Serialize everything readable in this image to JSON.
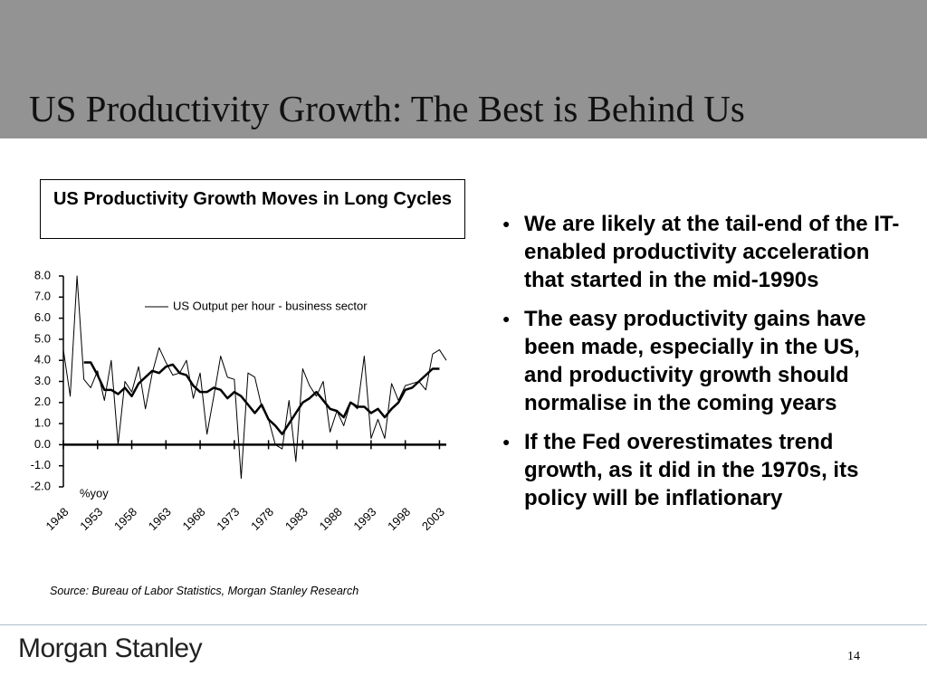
{
  "title": "US Productivity Growth: The Best is Behind Us",
  "bullets": [
    "We are likely at the tail-end of the IT-enabled productivity acceleration that started in the mid-1990s",
    "The easy productivity gains have been made, especially in the US, and productivity growth should normalise in the coming years",
    "If the Fed overestimates trend growth, as it did in the 1970s, its policy will be inflationary"
  ],
  "logo": "Morgan Stanley",
  "page_number": "14",
  "chart_data": {
    "type": "line",
    "title": "US Productivity Growth Moves in Long Cycles",
    "y_unit_label": "%yoy",
    "source": "Source: Bureau of Labor Statistics, Morgan Stanley Research",
    "x": [
      1948,
      1949,
      1950,
      1951,
      1952,
      1953,
      1954,
      1955,
      1956,
      1957,
      1958,
      1959,
      1960,
      1961,
      1962,
      1963,
      1964,
      1965,
      1966,
      1967,
      1968,
      1969,
      1970,
      1971,
      1972,
      1973,
      1974,
      1975,
      1976,
      1977,
      1978,
      1979,
      1980,
      1981,
      1982,
      1983,
      1984,
      1985,
      1986,
      1987,
      1988,
      1989,
      1990,
      1991,
      1992,
      1993,
      1994,
      1995,
      1996,
      1997,
      1998,
      1999,
      2000,
      2001,
      2002,
      2003,
      2004
    ],
    "series": [
      {
        "name": "US Output per hour - business sector",
        "color": "#000000",
        "line_width": 1,
        "values": [
          4.5,
          2.3,
          8.0,
          3.1,
          2.7,
          3.5,
          2.1,
          4.0,
          0.0,
          3.0,
          2.5,
          3.7,
          1.7,
          3.4,
          4.6,
          3.9,
          3.3,
          3.4,
          4.0,
          2.2,
          3.4,
          0.5,
          2.3,
          4.2,
          3.2,
          3.1,
          -1.6,
          3.4,
          3.2,
          1.8,
          1.2,
          0.0,
          -0.2,
          2.1,
          -0.8,
          3.6,
          2.8,
          2.3,
          3.0,
          0.6,
          1.6,
          0.9,
          2.0,
          1.7,
          4.2,
          0.3,
          1.2,
          0.3,
          2.9,
          2.1,
          2.8,
          2.9,
          3.0,
          2.6,
          4.3,
          4.5,
          4.0
        ]
      },
      {
        "color": "#000000",
        "line_width": 2.5,
        "values": [
          null,
          null,
          null,
          3.9,
          3.9,
          3.3,
          2.6,
          2.6,
          2.4,
          2.7,
          2.3,
          2.9,
          3.2,
          3.5,
          3.4,
          3.7,
          3.8,
          3.4,
          3.3,
          2.8,
          2.5,
          2.5,
          2.7,
          2.6,
          2.2,
          2.5,
          2.3,
          1.9,
          1.5,
          1.9,
          1.2,
          0.9,
          0.5,
          1.0,
          1.5,
          2.0,
          2.2,
          2.5,
          2.1,
          1.7,
          1.6,
          1.3,
          2.0,
          1.8,
          1.8,
          1.5,
          1.7,
          1.3,
          1.7,
          2.0,
          2.6,
          2.7,
          3.0,
          3.3,
          3.6,
          3.6,
          null
        ]
      }
    ],
    "xlim": [
      1948,
      2004
    ],
    "xticks": [
      1948,
      1953,
      1958,
      1963,
      1968,
      1973,
      1978,
      1983,
      1988,
      1993,
      1998,
      2003
    ],
    "ylim": [
      -2,
      8
    ],
    "yticks": [
      {
        "value": 8,
        "label": "8.0"
      },
      {
        "value": 7,
        "label": "7.0"
      },
      {
        "value": 6,
        "label": "6.0"
      },
      {
        "value": 5,
        "label": "5.0"
      },
      {
        "value": 4,
        "label": "4.0"
      },
      {
        "value": 3,
        "label": "3.0"
      },
      {
        "value": 2,
        "label": "2.0"
      },
      {
        "value": 1,
        "label": "1.0"
      },
      {
        "value": 0,
        "label": "0.0"
      },
      {
        "value": -1,
        "label": "-1.0"
      },
      {
        "value": -2,
        "label": "-2.0"
      }
    ],
    "legend": "top"
  }
}
